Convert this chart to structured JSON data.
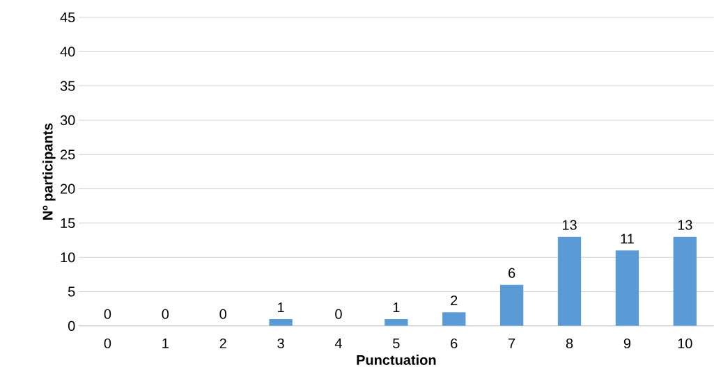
{
  "chart_data": {
    "type": "bar",
    "xlabel": "Punctuation",
    "ylabel": "Nº participants",
    "categories": [
      "0",
      "1",
      "2",
      "3",
      "4",
      "5",
      "6",
      "7",
      "8",
      "9",
      "10"
    ],
    "values": [
      0,
      0,
      0,
      1,
      0,
      1,
      2,
      6,
      13,
      11,
      13
    ],
    "color": "#5b9bd5",
    "ylim": [
      0,
      45
    ],
    "yticks": [
      0,
      5,
      10,
      15,
      20,
      25,
      30,
      35,
      40,
      45
    ],
    "grid": "y",
    "data_labels": true
  }
}
